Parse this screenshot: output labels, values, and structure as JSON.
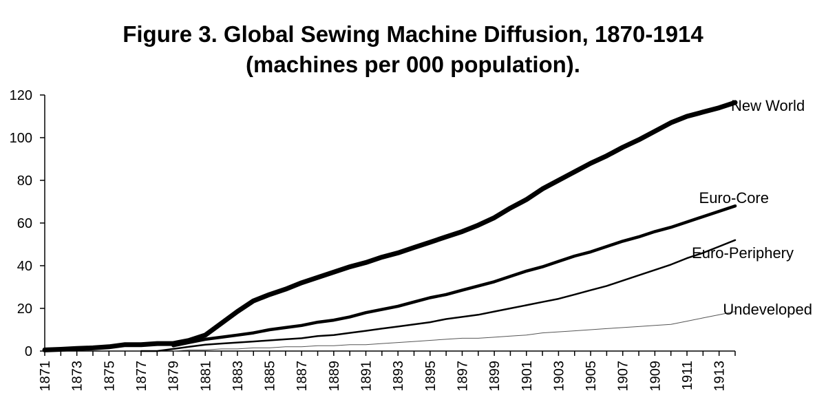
{
  "chart_data": {
    "type": "line",
    "title": "Figure 3. Global Sewing Machine Diffusion, 1870-1914",
    "subtitle": "(machines per 000 population).",
    "xlabel": "",
    "ylabel": "",
    "xlim": [
      1871,
      1914
    ],
    "ylim": [
      0,
      120
    ],
    "y_ticks": [
      0,
      20,
      40,
      60,
      80,
      100,
      120
    ],
    "x_ticks": [
      1871,
      1873,
      1875,
      1877,
      1879,
      1881,
      1883,
      1885,
      1887,
      1889,
      1891,
      1893,
      1895,
      1897,
      1899,
      1901,
      1903,
      1905,
      1907,
      1909,
      1911,
      1913
    ],
    "x_ticks_minor": [
      1871,
      1872,
      1873,
      1874,
      1875,
      1876,
      1877,
      1878,
      1879,
      1880,
      1881,
      1882,
      1883,
      1884,
      1885,
      1886,
      1887,
      1888,
      1889,
      1890,
      1891,
      1892,
      1893,
      1894,
      1895,
      1896,
      1897,
      1898,
      1899,
      1900,
      1901,
      1902,
      1903,
      1904,
      1905,
      1906,
      1907,
      1908,
      1909,
      1910,
      1911,
      1912,
      1913,
      1914
    ],
    "grid": false,
    "legend": "inline labels at line ends",
    "series": [
      {
        "name": "New World",
        "color": "#000000",
        "x": [
          1871,
          1872,
          1873,
          1874,
          1875,
          1876,
          1877,
          1878,
          1879,
          1880,
          1881,
          1882,
          1883,
          1884,
          1885,
          1886,
          1887,
          1888,
          1889,
          1890,
          1891,
          1892,
          1893,
          1894,
          1895,
          1896,
          1897,
          1898,
          1899,
          1900,
          1901,
          1902,
          1903,
          1904,
          1905,
          1906,
          1907,
          1908,
          1909,
          1910,
          1911,
          1912,
          1913,
          1914
        ],
        "values": [
          0.5,
          0.8,
          1.2,
          1.5,
          2,
          3,
          3,
          3.5,
          3.5,
          5,
          7.5,
          13,
          18.5,
          23.5,
          26.5,
          29,
          32,
          34.5,
          37,
          39.5,
          41.5,
          44,
          46,
          48.5,
          51,
          53.5,
          56,
          59,
          62.5,
          67,
          71,
          76,
          80,
          84,
          88,
          91.5,
          95.5,
          99,
          103,
          107,
          110,
          112,
          114,
          116.5
        ]
      },
      {
        "name": "Euro-Core",
        "color": "#000000",
        "x": [
          1879,
          1880,
          1881,
          1882,
          1883,
          1884,
          1885,
          1886,
          1887,
          1888,
          1889,
          1890,
          1891,
          1892,
          1893,
          1894,
          1895,
          1896,
          1897,
          1898,
          1899,
          1900,
          1901,
          1902,
          1903,
          1904,
          1905,
          1906,
          1907,
          1908,
          1909,
          1910,
          1911,
          1912,
          1913,
          1914
        ],
        "values": [
          2.5,
          4,
          5.5,
          6.5,
          7.5,
          8.5,
          10,
          11,
          12,
          13.5,
          14.5,
          16,
          18,
          19.5,
          21,
          23,
          25,
          26.5,
          28.5,
          30.5,
          32.5,
          35,
          37.5,
          39.5,
          42,
          44.5,
          46.5,
          49,
          51.5,
          53.5,
          56,
          58,
          60.5,
          63,
          65.5,
          68
        ]
      },
      {
        "name": "Euro-Periphery",
        "color": "#000000",
        "x": [
          1877,
          1878,
          1879,
          1880,
          1881,
          1882,
          1883,
          1884,
          1885,
          1886,
          1887,
          1888,
          1889,
          1890,
          1891,
          1892,
          1893,
          1894,
          1895,
          1896,
          1897,
          1898,
          1899,
          1900,
          1901,
          1902,
          1903,
          1904,
          1905,
          1906,
          1907,
          1908,
          1909,
          1910,
          1911,
          1912,
          1913,
          1914
        ],
        "values": [
          0,
          0,
          1,
          2,
          3,
          3.5,
          4,
          4.5,
          5,
          5.5,
          6,
          7,
          7.5,
          8.5,
          9.5,
          10.5,
          11.5,
          12.5,
          13.5,
          15,
          16,
          17,
          18.5,
          20,
          21.5,
          23,
          24.5,
          26.5,
          28.5,
          30.5,
          33,
          35.5,
          38,
          40.5,
          43.5,
          46,
          49,
          52
        ]
      },
      {
        "name": "Undeveloped",
        "color": "#555555",
        "x": [
          1879,
          1880,
          1881,
          1882,
          1883,
          1884,
          1885,
          1886,
          1887,
          1888,
          1889,
          1890,
          1891,
          1892,
          1893,
          1894,
          1895,
          1896,
          1897,
          1898,
          1899,
          1900,
          1901,
          1902,
          1903,
          1904,
          1905,
          1906,
          1907,
          1908,
          1909,
          1910,
          1911,
          1912,
          1913,
          1914
        ],
        "values": [
          0,
          0.5,
          0.5,
          1,
          1,
          1.5,
          1.5,
          2,
          2,
          2.5,
          2.5,
          3,
          3,
          3.5,
          4,
          4.5,
          5,
          5.5,
          6,
          6,
          6.5,
          7,
          7.5,
          8.5,
          9,
          9.5,
          10,
          10.5,
          11,
          11.5,
          12,
          12.5,
          14,
          15.5,
          17,
          18.5
        ]
      }
    ]
  }
}
